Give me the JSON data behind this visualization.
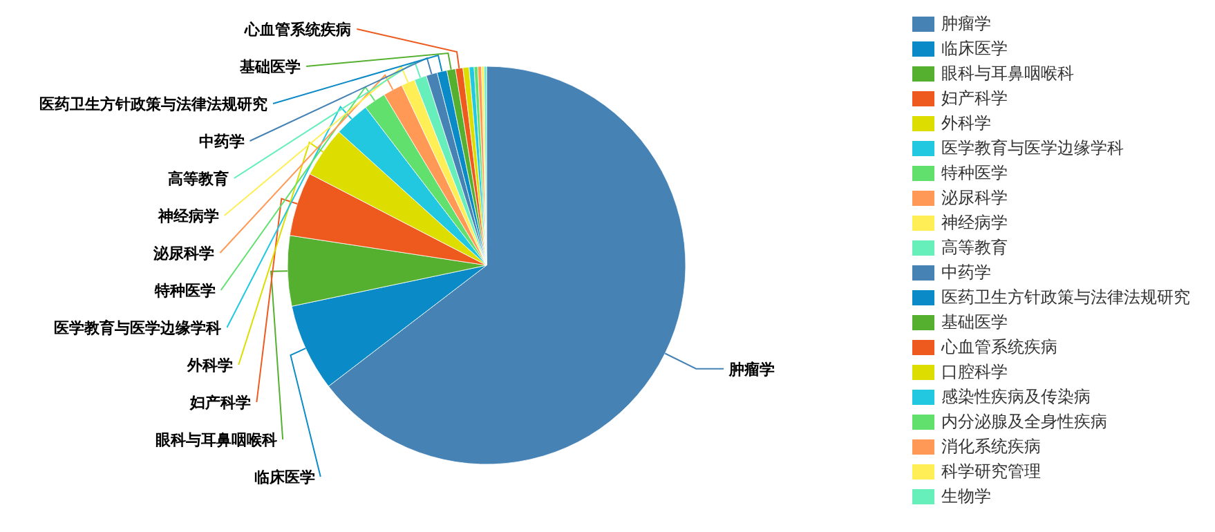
{
  "chart_data": {
    "type": "pie",
    "categories": [
      "肿瘤学",
      "临床医学",
      "眼科与耳鼻咽喉科",
      "妇产科学",
      "外科学",
      "医学教育与医学边缘学科",
      "特种医学",
      "泌尿科学",
      "神经病学",
      "高等教育",
      "中药学",
      "医药卫生方针政策与法律法规研究",
      "基础医学",
      "心血管系统疾病",
      "口腔科学",
      "感染性疾病及传染病",
      "内分泌腺及全身性疾病",
      "消化系统疾病",
      "科学研究管理",
      "生物学"
    ],
    "values": [
      64.6,
      7.1,
      5.7,
      5.2,
      4.1,
      2.9,
      1.8,
      1.6,
      1.1,
      1.0,
      0.9,
      0.8,
      0.7,
      0.6,
      0.5,
      0.4,
      0.3,
      0.3,
      0.2,
      0.2
    ],
    "colors": [
      "#4682b4",
      "#0a8ac6",
      "#55b030",
      "#ee5a1e",
      "#dddd00",
      "#22c8e0",
      "#62e06e",
      "#ff9955",
      "#ffee55",
      "#66eebb",
      "#4682b4",
      "#0a8ac6",
      "#55b030",
      "#ee5a1e",
      "#dddd00",
      "#22c8e0",
      "#62e06e",
      "#ff9955",
      "#ffee55",
      "#66eebb"
    ],
    "value_labels": [
      "肿瘤学",
      "临床医学",
      "眼科与耳鼻咽喉科",
      "妇产科学",
      "外科学",
      "医学教育与医学边缘学科",
      "特种医学",
      "泌尿科学",
      "神经病学",
      "高等教育",
      "中药学",
      "医药卫生方针政策与法律法规研究",
      "基础医学",
      "心血管系统疾病",
      null,
      null,
      null,
      null,
      null,
      null
    ],
    "legend": "right"
  }
}
